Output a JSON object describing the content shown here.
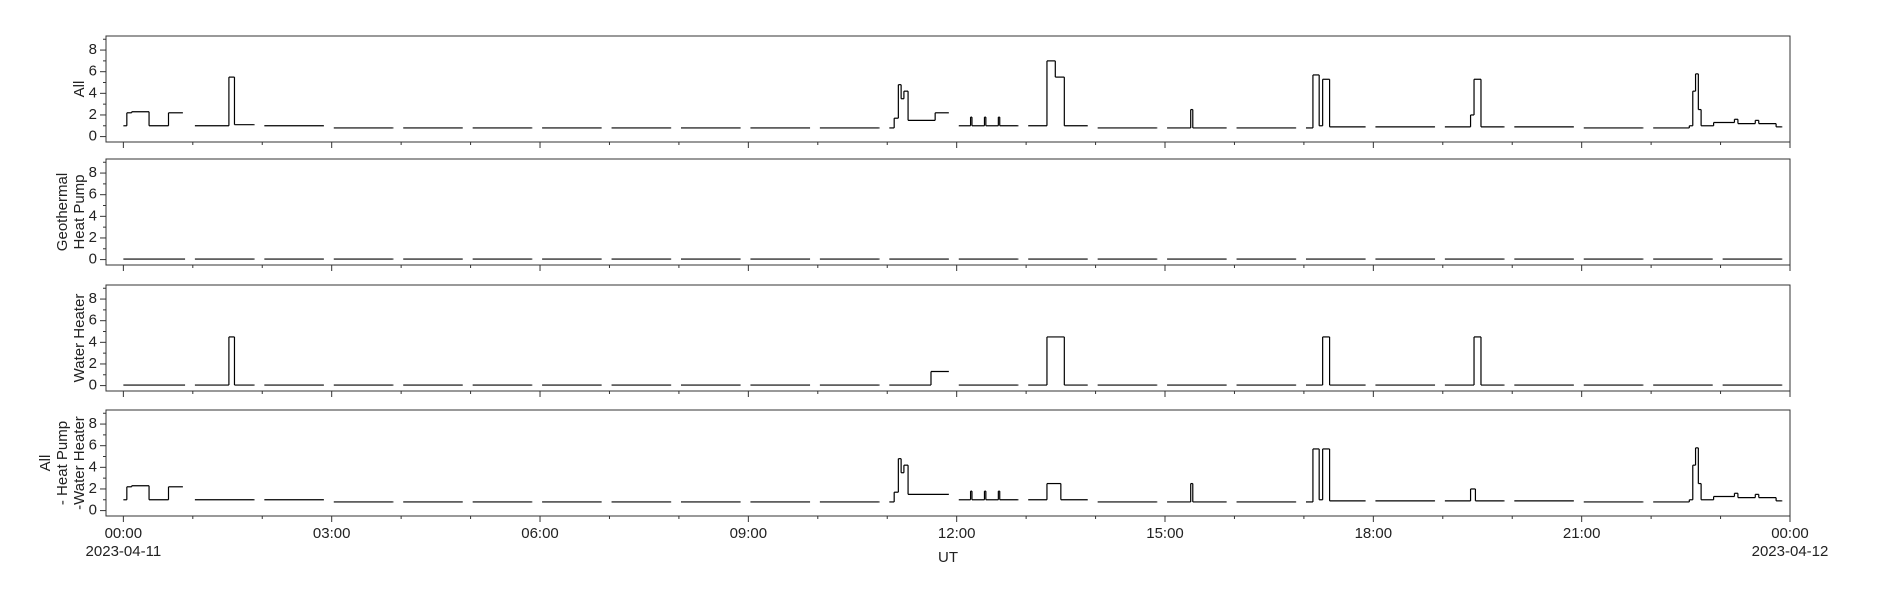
{
  "chart_data": [
    {
      "type": "line",
      "drawstyle": "steps-post",
      "ylabel": [
        "All"
      ],
      "ylim": [
        -0.5,
        9.3
      ],
      "yticks": [
        0,
        2,
        4,
        6,
        8
      ],
      "xlim": [
        -0.25,
        24
      ],
      "xticks": [
        0,
        3,
        6,
        9,
        12,
        15,
        18,
        21,
        24
      ],
      "color": "#000000",
      "x": [
        0,
        0.05,
        0.12,
        0.37,
        0.65,
        0.85,
        0.9,
        1.03,
        1.52,
        1.6,
        1.88,
        1.93,
        2.03,
        2.88,
        2.93,
        3.03,
        3.88,
        3.93,
        4.03,
        4.88,
        4.93,
        5.03,
        5.88,
        5.93,
        6.03,
        6.88,
        6.93,
        7.03,
        7.88,
        7.93,
        8.03,
        8.88,
        8.93,
        9.03,
        9.88,
        9.93,
        10.03,
        10.88,
        10.93,
        11.03,
        11.1,
        11.16,
        11.2,
        11.24,
        11.3,
        11.69,
        11.88,
        11.93,
        12.03,
        12.2,
        12.22,
        12.4,
        12.42,
        12.6,
        12.62,
        12.88,
        12.93,
        13.03,
        13.3,
        13.42,
        13.55,
        13.88,
        13.93,
        14.03,
        14.88,
        14.93,
        15.03,
        15.37,
        15.4,
        15.88,
        15.93,
        16.03,
        16.88,
        16.93,
        17.03,
        17.13,
        17.22,
        17.27,
        17.37,
        17.88,
        17.93,
        18.03,
        18.88,
        18.93,
        19.03,
        19.4,
        19.45,
        19.55,
        19.88,
        19.93,
        20.03,
        20.88,
        20.93,
        21.03,
        21.88,
        21.93,
        22.03,
        22.55,
        22.6,
        22.64,
        22.68,
        22.72,
        22.9,
        23.2,
        23.25,
        23.5,
        23.55,
        23.8,
        23.88
      ],
      "values": [
        1.0,
        2.2,
        2.3,
        1.0,
        2.2,
        2.2,
        null,
        1.0,
        5.5,
        1.1,
        1.1,
        null,
        1.0,
        1.0,
        null,
        0.8,
        0.8,
        null,
        0.8,
        0.8,
        null,
        0.8,
        0.8,
        null,
        0.8,
        0.8,
        null,
        0.8,
        0.8,
        null,
        0.8,
        0.8,
        null,
        0.8,
        0.8,
        null,
        0.8,
        0.8,
        null,
        0.8,
        1.7,
        4.8,
        3.5,
        4.2,
        1.5,
        2.2,
        2.2,
        null,
        1.0,
        1.8,
        1.0,
        1.8,
        1.0,
        1.8,
        1.0,
        1.0,
        null,
        1.0,
        7.0,
        5.5,
        1.0,
        1.0,
        null,
        0.8,
        0.8,
        null,
        0.8,
        2.5,
        0.8,
        0.8,
        null,
        0.8,
        0.8,
        null,
        0.8,
        5.7,
        1.0,
        5.3,
        0.9,
        0.9,
        null,
        0.9,
        0.9,
        null,
        0.9,
        2.0,
        5.3,
        0.9,
        0.9,
        null,
        0.9,
        0.9,
        null,
        0.8,
        0.8,
        null,
        0.8,
        1.0,
        4.2,
        5.8,
        2.5,
        1.0,
        1.3,
        1.6,
        1.2,
        1.5,
        1.2,
        0.9,
        0.9
      ]
    },
    {
      "type": "line",
      "drawstyle": "steps-post",
      "ylabel": [
        "Geothermal",
        "Heat Pump"
      ],
      "ylim": [
        -0.5,
        9.3
      ],
      "yticks": [
        0,
        2,
        4,
        6,
        8
      ],
      "xlim": [
        -0.25,
        24
      ],
      "xticks": [
        0,
        3,
        6,
        9,
        12,
        15,
        18,
        21,
        24
      ],
      "color": "#000000",
      "x": [
        0,
        0.88,
        0.93,
        1.03,
        1.88,
        1.93,
        2.03,
        2.88,
        2.93,
        3.03,
        3.88,
        3.93,
        4.03,
        4.88,
        4.93,
        5.03,
        5.88,
        5.93,
        6.03,
        6.88,
        6.93,
        7.03,
        7.88,
        7.93,
        8.03,
        8.88,
        8.93,
        9.03,
        9.88,
        9.93,
        10.03,
        10.88,
        10.93,
        11.03,
        11.88,
        11.93,
        12.03,
        12.88,
        12.93,
        13.03,
        13.88,
        13.93,
        14.03,
        14.88,
        14.93,
        15.03,
        15.88,
        15.93,
        16.03,
        16.88,
        16.93,
        17.03,
        17.88,
        17.93,
        18.03,
        18.88,
        18.93,
        19.03,
        19.88,
        19.93,
        20.03,
        20.88,
        20.93,
        21.03,
        21.88,
        21.93,
        22.03,
        22.88,
        22.93,
        23.03,
        23.88
      ],
      "values": [
        0.05,
        0.05,
        null,
        0.05,
        0.05,
        null,
        0.05,
        0.05,
        null,
        0.05,
        0.05,
        null,
        0.05,
        0.05,
        null,
        0.05,
        0.05,
        null,
        0.05,
        0.05,
        null,
        0.05,
        0.05,
        null,
        0.05,
        0.05,
        null,
        0.05,
        0.05,
        null,
        0.05,
        0.05,
        null,
        0.05,
        0.05,
        null,
        0.05,
        0.05,
        null,
        0.05,
        0.05,
        null,
        0.05,
        0.05,
        null,
        0.05,
        0.05,
        null,
        0.05,
        0.05,
        null,
        0.05,
        0.05,
        null,
        0.05,
        0.05,
        null,
        0.05,
        0.05,
        null,
        0.05,
        0.05,
        null,
        0.05,
        0.05,
        null,
        0.05,
        0.05,
        null,
        0.05,
        0.05
      ]
    },
    {
      "type": "line",
      "drawstyle": "steps-post",
      "ylabel": [
        "Water Heater"
      ],
      "ylim": [
        -0.5,
        9.3
      ],
      "yticks": [
        0,
        2,
        4,
        6,
        8
      ],
      "xlim": [
        -0.25,
        24
      ],
      "xticks": [
        0,
        3,
        6,
        9,
        12,
        15,
        18,
        21,
        24
      ],
      "color": "#000000",
      "x": [
        0,
        0.88,
        0.93,
        1.03,
        1.52,
        1.6,
        1.88,
        1.93,
        2.03,
        2.88,
        2.93,
        3.03,
        3.88,
        3.93,
        4.03,
        4.88,
        4.93,
        5.03,
        5.88,
        5.93,
        6.03,
        6.88,
        6.93,
        7.03,
        7.88,
        7.93,
        8.03,
        8.88,
        8.93,
        9.03,
        9.88,
        9.93,
        10.03,
        10.88,
        10.93,
        11.03,
        11.63,
        11.88,
        11.93,
        12.03,
        12.88,
        12.93,
        13.03,
        13.3,
        13.55,
        13.88,
        13.93,
        14.03,
        14.88,
        14.93,
        15.03,
        15.88,
        15.93,
        16.03,
        16.88,
        16.93,
        17.03,
        17.27,
        17.37,
        17.88,
        17.93,
        18.03,
        18.88,
        18.93,
        19.03,
        19.45,
        19.55,
        19.88,
        19.93,
        20.03,
        20.88,
        20.93,
        21.03,
        21.88,
        21.93,
        22.03,
        22.88,
        22.93,
        23.03,
        23.88
      ],
      "values": [
        0.05,
        0.05,
        null,
        0.05,
        4.5,
        0.05,
        0.05,
        null,
        0.05,
        0.05,
        null,
        0.05,
        0.05,
        null,
        0.05,
        0.05,
        null,
        0.05,
        0.05,
        null,
        0.05,
        0.05,
        null,
        0.05,
        0.05,
        null,
        0.05,
        0.05,
        null,
        0.05,
        0.05,
        null,
        0.05,
        0.05,
        null,
        0.05,
        1.3,
        1.3,
        null,
        0.05,
        0.05,
        null,
        0.05,
        4.5,
        0.05,
        0.05,
        null,
        0.05,
        0.05,
        null,
        0.05,
        0.05,
        null,
        0.05,
        0.05,
        null,
        0.05,
        4.5,
        0.05,
        0.05,
        null,
        0.05,
        0.05,
        null,
        0.05,
        4.5,
        0.05,
        0.05,
        null,
        0.05,
        0.05,
        null,
        0.05,
        0.05,
        null,
        0.05,
        0.05,
        null,
        0.05,
        0.05
      ]
    },
    {
      "type": "line",
      "drawstyle": "steps-post",
      "ylabel": [
        "All",
        "- Heat Pump",
        "-Water Heater"
      ],
      "ylim": [
        -0.5,
        9.3
      ],
      "yticks": [
        0,
        2,
        4,
        6,
        8
      ],
      "xlim": [
        -0.25,
        24
      ],
      "color": "#000000",
      "xticks": [
        {
          "value": 0,
          "label": "00:00"
        },
        {
          "value": 3,
          "label": "03:00"
        },
        {
          "value": 6,
          "label": "06:00"
        },
        {
          "value": 9,
          "label": "09:00"
        },
        {
          "value": 12,
          "label": "12:00"
        },
        {
          "value": 15,
          "label": "15:00"
        },
        {
          "value": 18,
          "label": "18:00"
        },
        {
          "value": 21,
          "label": "21:00"
        },
        {
          "value": 24,
          "label": "00:00"
        }
      ],
      "xtick_dates": [
        {
          "value": 0,
          "label": "2023-04-11"
        },
        {
          "value": 24,
          "label": "2023-04-12"
        }
      ],
      "xlabel": "UT",
      "x": [
        0,
        0.05,
        0.12,
        0.37,
        0.65,
        0.85,
        0.9,
        1.03,
        1.88,
        1.93,
        2.03,
        2.88,
        2.93,
        3.03,
        3.88,
        3.93,
        4.03,
        4.88,
        4.93,
        5.03,
        5.88,
        5.93,
        6.03,
        6.88,
        6.93,
        7.03,
        7.88,
        7.93,
        8.03,
        8.88,
        8.93,
        9.03,
        9.88,
        9.93,
        10.03,
        10.88,
        10.93,
        11.03,
        11.1,
        11.16,
        11.2,
        11.24,
        11.3,
        11.88,
        11.93,
        12.03,
        12.2,
        12.22,
        12.4,
        12.42,
        12.6,
        12.62,
        12.88,
        12.93,
        13.03,
        13.3,
        13.5,
        13.88,
        13.93,
        14.03,
        14.88,
        14.93,
        15.03,
        15.37,
        15.4,
        15.88,
        15.93,
        16.03,
        16.88,
        16.93,
        17.03,
        17.13,
        17.22,
        17.27,
        17.37,
        17.88,
        17.93,
        18.03,
        18.88,
        18.93,
        19.03,
        19.4,
        19.47,
        19.88,
        19.93,
        20.03,
        20.88,
        20.93,
        21.03,
        21.88,
        21.93,
        22.03,
        22.55,
        22.6,
        22.64,
        22.68,
        22.72,
        22.9,
        23.2,
        23.25,
        23.5,
        23.55,
        23.8,
        23.88
      ],
      "values": [
        1.0,
        2.2,
        2.3,
        1.0,
        2.2,
        2.2,
        null,
        1.0,
        1.0,
        null,
        1.0,
        1.0,
        null,
        0.8,
        0.8,
        null,
        0.8,
        0.8,
        null,
        0.8,
        0.8,
        null,
        0.8,
        0.8,
        null,
        0.8,
        0.8,
        null,
        0.8,
        0.8,
        null,
        0.8,
        0.8,
        null,
        0.8,
        0.8,
        null,
        0.8,
        1.7,
        4.8,
        3.5,
        4.2,
        1.5,
        1.5,
        null,
        1.0,
        1.8,
        1.0,
        1.8,
        1.0,
        1.8,
        1.0,
        1.0,
        null,
        1.0,
        2.5,
        1.0,
        1.0,
        null,
        0.8,
        0.8,
        null,
        0.8,
        2.5,
        0.8,
        0.8,
        null,
        0.8,
        0.8,
        null,
        0.8,
        5.7,
        1.0,
        5.7,
        0.9,
        0.9,
        null,
        0.9,
        0.9,
        null,
        0.9,
        2.0,
        0.9,
        0.9,
        null,
        0.9,
        0.9,
        null,
        0.8,
        0.8,
        null,
        0.8,
        1.0,
        4.2,
        5.8,
        2.5,
        1.0,
        1.3,
        1.6,
        1.2,
        1.5,
        1.2,
        0.9,
        0.9
      ]
    }
  ]
}
